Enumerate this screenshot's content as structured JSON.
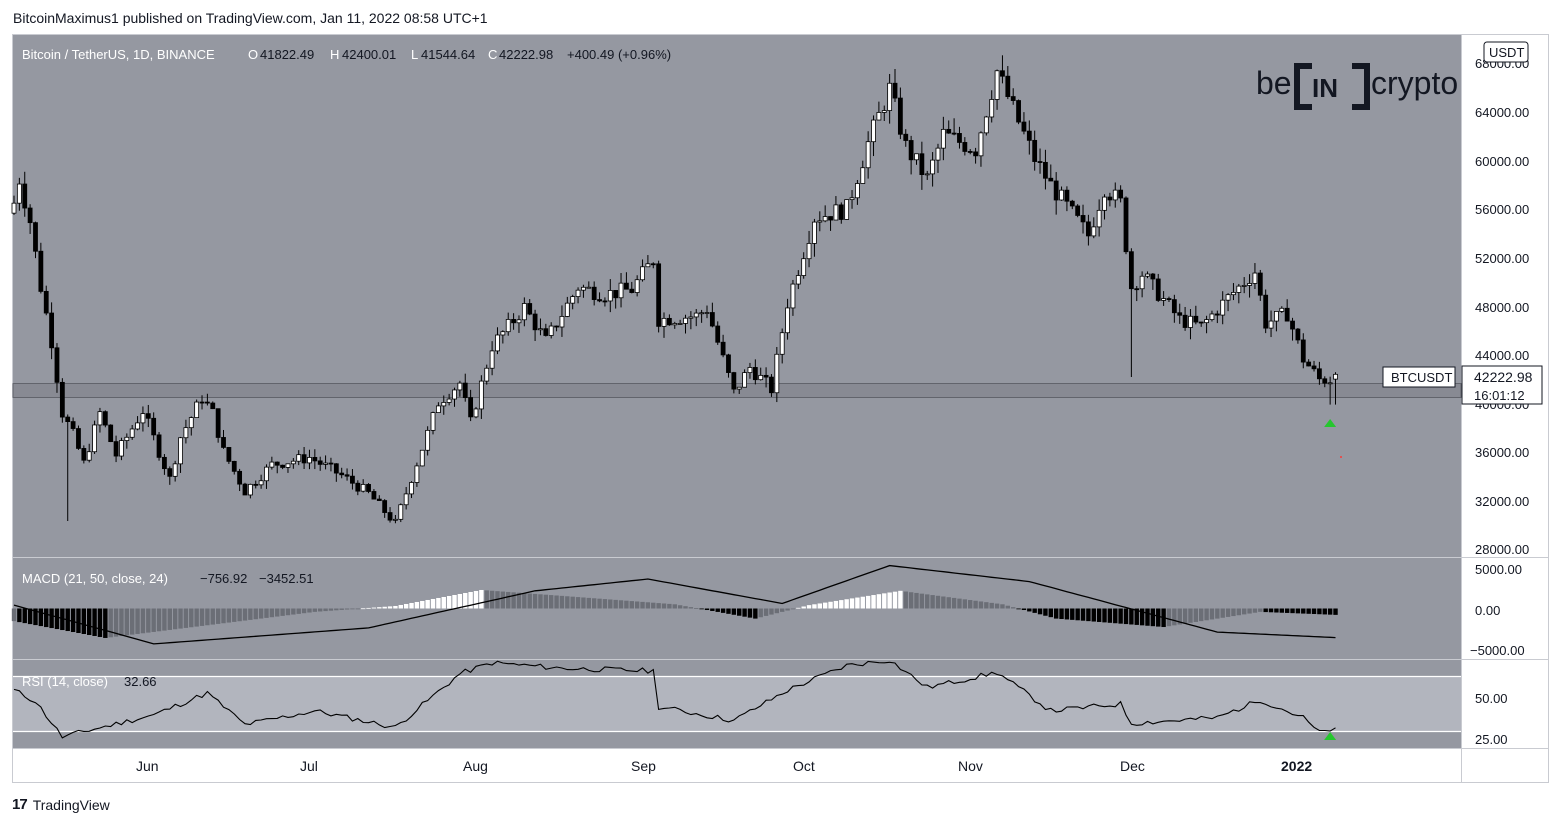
{
  "header": {
    "publish_text": "BitcoinMaximus1 published on TradingView.com, Jan 11, 2022 08:58 UTC+1"
  },
  "symbol_bar": {
    "title": "Bitcoin / TetherUS, 1D, BINANCE",
    "o_label": "O",
    "o_value": "41822.49",
    "h_label": "H",
    "h_value": "42400.01",
    "l_label": "L",
    "l_value": "41544.64",
    "c_label": "C",
    "c_value": "42222.98",
    "change": "+400.49 (+0.96%)"
  },
  "brand": {
    "logo_left": "be",
    "logo_mid": "IN",
    "logo_right": "crypto"
  },
  "price_axis": {
    "currency": "USDT",
    "ticks": [
      "68000.00",
      "64000.00",
      "60000.00",
      "56000.00",
      "52000.00",
      "48000.00",
      "44000.00",
      "40000.00",
      "36000.00",
      "32000.00",
      "28000.00"
    ],
    "last_label": "BTCUSDT",
    "last_value": "42222.98",
    "countdown": "16:01:12"
  },
  "macd": {
    "label": "MACD (21, 50, close, 24)",
    "v1": "−756.92",
    "v2": "−3452.51",
    "ticks": [
      "5000.00",
      "0.00",
      "−5000.00"
    ]
  },
  "rsi": {
    "label": "RSI (14, close)",
    "value": "32.66",
    "ticks": [
      "50.00",
      "25.00"
    ]
  },
  "time_axis": {
    "labels": [
      "Jun",
      "Jul",
      "Aug",
      "Sep",
      "Oct",
      "Nov",
      "Dec",
      "2022"
    ]
  },
  "footer": {
    "logo": "17",
    "brand": "TradingView"
  },
  "colors": {
    "pane_bg": "#9598a1",
    "rsi_band": "#b2b5be",
    "up": "#ffffff",
    "down": "#000000",
    "arrow": "#26c62e"
  },
  "chart_data": {
    "type": "candlestick",
    "symbol": "BTCUSDT",
    "interval": "1D",
    "ylim": [
      27000,
      70500
    ],
    "support_zone": [
      40300,
      41450
    ],
    "markers": [
      {
        "type": "up-arrow",
        "date": "2022-01-10"
      }
    ],
    "waypoints": [
      {
        "date": "2021-05-10",
        "price": 56500
      },
      {
        "date": "2021-05-11",
        "price": 58500
      },
      {
        "date": "2021-05-13",
        "price": 55000
      },
      {
        "date": "2021-05-15",
        "price": 49500
      },
      {
        "date": "2021-05-17",
        "price": 45000
      },
      {
        "date": "2021-05-19",
        "price": 39000
      },
      {
        "date": "2021-05-21",
        "price": 37200
      },
      {
        "date": "2021-05-23",
        "price": 34800
      },
      {
        "date": "2021-05-26",
        "price": 39000
      },
      {
        "date": "2021-05-29",
        "price": 35500
      },
      {
        "date": "2021-06-03",
        "price": 39200
      },
      {
        "date": "2021-06-08",
        "price": 33500
      },
      {
        "date": "2021-06-10",
        "price": 37000
      },
      {
        "date": "2021-06-14",
        "price": 40300
      },
      {
        "date": "2021-06-16",
        "price": 39000
      },
      {
        "date": "2021-06-18",
        "price": 35800
      },
      {
        "date": "2021-06-22",
        "price": 32500
      },
      {
        "date": "2021-06-27",
        "price": 34700
      },
      {
        "date": "2021-07-04",
        "price": 35300
      },
      {
        "date": "2021-07-10",
        "price": 33800
      },
      {
        "date": "2021-07-15",
        "price": 32300
      },
      {
        "date": "2021-07-20",
        "price": 29800
      },
      {
        "date": "2021-07-23",
        "price": 33600
      },
      {
        "date": "2021-07-26",
        "price": 37300
      },
      {
        "date": "2021-07-28",
        "price": 39900
      },
      {
        "date": "2021-08-01",
        "price": 41500
      },
      {
        "date": "2021-08-03",
        "price": 38200
      },
      {
        "date": "2021-08-07",
        "price": 44600
      },
      {
        "date": "2021-08-13",
        "price": 47800
      },
      {
        "date": "2021-08-17",
        "price": 45000
      },
      {
        "date": "2021-08-23",
        "price": 49500
      },
      {
        "date": "2021-08-28",
        "price": 48900
      },
      {
        "date": "2021-09-02",
        "price": 49300
      },
      {
        "date": "2021-09-06",
        "price": 51800
      },
      {
        "date": "2021-09-07",
        "price": 46800
      },
      {
        "date": "2021-09-14",
        "price": 47100
      },
      {
        "date": "2021-09-16",
        "price": 47700
      },
      {
        "date": "2021-09-21",
        "price": 40700
      },
      {
        "date": "2021-09-24",
        "price": 42800
      },
      {
        "date": "2021-09-28",
        "price": 41000
      },
      {
        "date": "2021-10-01",
        "price": 48200
      },
      {
        "date": "2021-10-06",
        "price": 55300
      },
      {
        "date": "2021-10-12",
        "price": 56000
      },
      {
        "date": "2021-10-16",
        "price": 61500
      },
      {
        "date": "2021-10-20",
        "price": 66000
      },
      {
        "date": "2021-10-23",
        "price": 61200
      },
      {
        "date": "2021-10-27",
        "price": 58500
      },
      {
        "date": "2021-10-30",
        "price": 62200
      },
      {
        "date": "2021-11-05",
        "price": 61000
      },
      {
        "date": "2021-11-09",
        "price": 67500
      },
      {
        "date": "2021-11-12",
        "price": 64300
      },
      {
        "date": "2021-11-16",
        "price": 60200
      },
      {
        "date": "2021-11-19",
        "price": 58000
      },
      {
        "date": "2021-11-22",
        "price": 56200
      },
      {
        "date": "2021-11-26",
        "price": 53800
      },
      {
        "date": "2021-11-29",
        "price": 57800
      },
      {
        "date": "2021-12-02",
        "price": 56500
      },
      {
        "date": "2021-12-04",
        "price": 49500
      },
      {
        "date": "2021-12-06",
        "price": 50600
      },
      {
        "date": "2021-12-13",
        "price": 46800
      },
      {
        "date": "2021-12-17",
        "price": 46200
      },
      {
        "date": "2021-12-22",
        "price": 48600
      },
      {
        "date": "2021-12-27",
        "price": 50800
      },
      {
        "date": "2021-12-29",
        "price": 46500
      },
      {
        "date": "2022-01-02",
        "price": 47300
      },
      {
        "date": "2022-01-05",
        "price": 43500
      },
      {
        "date": "2022-01-08",
        "price": 41800
      },
      {
        "date": "2022-01-10",
        "price": 41800
      },
      {
        "date": "2022-01-11",
        "price": 42222.98
      }
    ],
    "macd": {
      "ylim": [
        -6000,
        6000
      ],
      "signal": [
        {
          "date": "2021-05-10",
          "value": 400
        },
        {
          "date": "2021-06-05",
          "value": -4200
        },
        {
          "date": "2021-07-15",
          "value": -2300
        },
        {
          "date": "2021-08-15",
          "value": 2100
        },
        {
          "date": "2021-09-05",
          "value": 3500
        },
        {
          "date": "2021-09-30",
          "value": 600
        },
        {
          "date": "2021-10-20",
          "value": 5100
        },
        {
          "date": "2021-11-15",
          "value": 3200
        },
        {
          "date": "2021-12-20",
          "value": -2800
        },
        {
          "date": "2022-01-11",
          "value": -3452.51
        }
      ],
      "histogram": [
        {
          "date": "2021-05-10",
          "value": -1500
        },
        {
          "date": "2021-05-27",
          "value": -3500
        },
        {
          "date": "2021-07-05",
          "value": -400
        },
        {
          "date": "2021-07-20",
          "value": 300
        },
        {
          "date": "2021-08-05",
          "value": 2200
        },
        {
          "date": "2021-08-20",
          "value": 1500
        },
        {
          "date": "2021-09-10",
          "value": 500
        },
        {
          "date": "2021-09-25",
          "value": -1200
        },
        {
          "date": "2021-10-05",
          "value": 400
        },
        {
          "date": "2021-10-22",
          "value": 2100
        },
        {
          "date": "2021-11-10",
          "value": 500
        },
        {
          "date": "2021-11-20",
          "value": -1200
        },
        {
          "date": "2021-12-10",
          "value": -2200
        },
        {
          "date": "2021-12-28",
          "value": -400
        },
        {
          "date": "2022-01-11",
          "value": -756.92
        }
      ]
    },
    "rsi": {
      "ylim": [
        18,
        82
      ],
      "band": [
        30,
        70
      ],
      "points": [
        {
          "date": "2021-05-10",
          "value": 60
        },
        {
          "date": "2021-05-14",
          "value": 52
        },
        {
          "date": "2021-05-19",
          "value": 26
        },
        {
          "date": "2021-05-23",
          "value": 30
        },
        {
          "date": "2021-06-05",
          "value": 42
        },
        {
          "date": "2021-06-15",
          "value": 58
        },
        {
          "date": "2021-06-22",
          "value": 35
        },
        {
          "date": "2021-07-05",
          "value": 45
        },
        {
          "date": "2021-07-20",
          "value": 33
        },
        {
          "date": "2021-08-01",
          "value": 72
        },
        {
          "date": "2021-08-07",
          "value": 80
        },
        {
          "date": "2021-08-20",
          "value": 76
        },
        {
          "date": "2021-09-06",
          "value": 74
        },
        {
          "date": "2021-09-07",
          "value": 48
        },
        {
          "date": "2021-09-21",
          "value": 38
        },
        {
          "date": "2021-10-01",
          "value": 60
        },
        {
          "date": "2021-10-12",
          "value": 78
        },
        {
          "date": "2021-10-20",
          "value": 82
        },
        {
          "date": "2021-10-27",
          "value": 62
        },
        {
          "date": "2021-11-09",
          "value": 73
        },
        {
          "date": "2021-11-19",
          "value": 45
        },
        {
          "date": "2021-12-02",
          "value": 50
        },
        {
          "date": "2021-12-04",
          "value": 36
        },
        {
          "date": "2021-12-20",
          "value": 40
        },
        {
          "date": "2021-12-28",
          "value": 53
        },
        {
          "date": "2022-01-05",
          "value": 40
        },
        {
          "date": "2022-01-08",
          "value": 29
        },
        {
          "date": "2022-01-11",
          "value": 32.66
        }
      ]
    }
  }
}
